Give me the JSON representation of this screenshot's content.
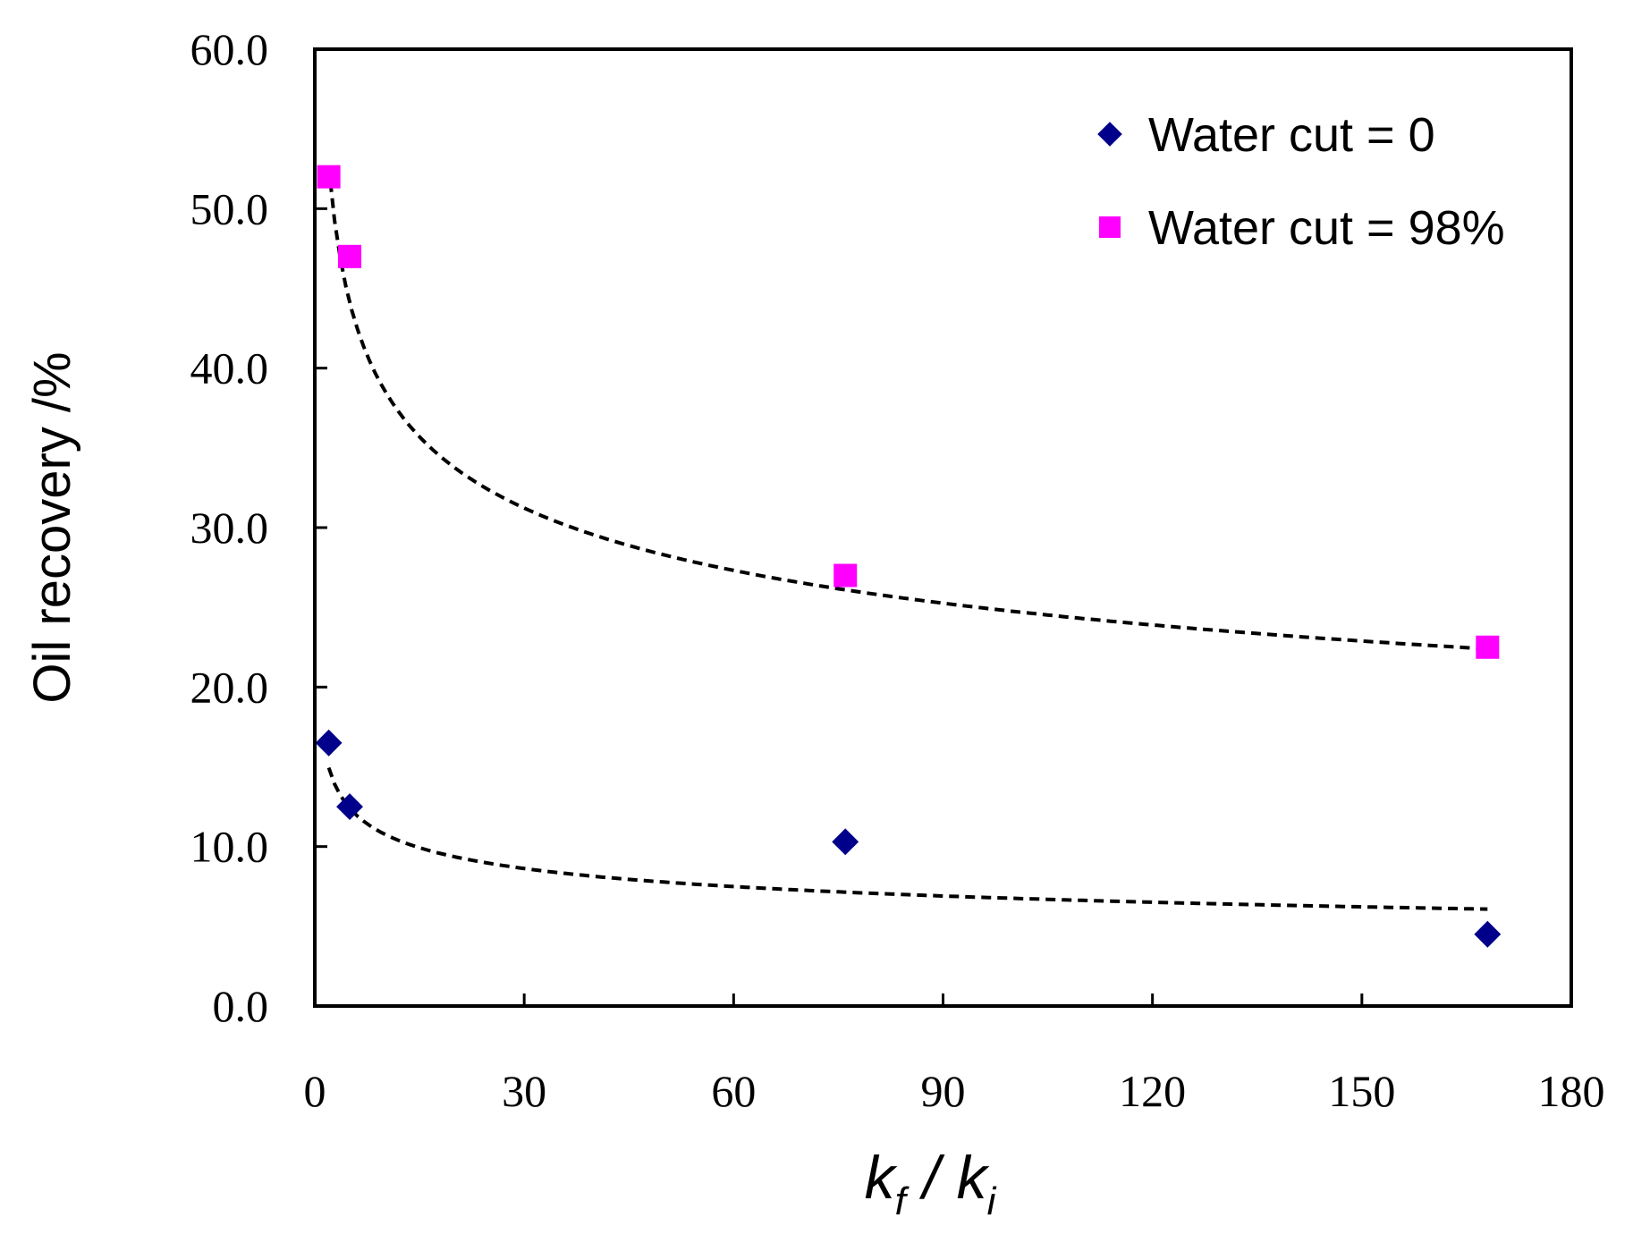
{
  "chart_data": {
    "type": "scatter",
    "title": "",
    "xlabel": {
      "main": "k",
      "sub1": "f",
      "sep": " / ",
      "main2": "k",
      "sub2": "i"
    },
    "ylabel": "Oil recovery /%",
    "xlim": [
      0,
      180
    ],
    "ylim": [
      0,
      60
    ],
    "xticks": [
      "0",
      "30",
      "60",
      "90",
      "120",
      "150",
      "180"
    ],
    "yticks": [
      "0.0",
      "10.0",
      "20.0",
      "30.0",
      "40.0",
      "50.0",
      "60.0"
    ],
    "legend_position": "top-right",
    "series": [
      {
        "name": "Water cut = 0",
        "marker": "diamond",
        "color": "#00008B",
        "x": [
          2,
          5,
          76,
          168
        ],
        "y": [
          16.5,
          12.5,
          10.3,
          4.5
        ],
        "trendline": {
          "type": "power",
          "a": 17.2,
          "b": -0.203,
          "x_range": [
            2,
            168
          ]
        }
      },
      {
        "name": "Water cut = 98%",
        "marker": "square",
        "color": "#FF00FF",
        "x": [
          2,
          5,
          76,
          168
        ],
        "y": [
          52.0,
          47.0,
          27.0,
          22.5
        ],
        "trendline": {
          "type": "power",
          "a": 60.2,
          "b": -0.193,
          "x_range": [
            2,
            168
          ]
        }
      }
    ]
  }
}
